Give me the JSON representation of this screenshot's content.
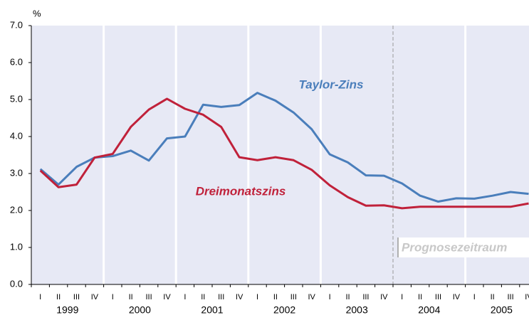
{
  "chart_data": {
    "type": "line",
    "y_unit": "%",
    "categories": [
      "I",
      "II",
      "III",
      "IV",
      "I",
      "II",
      "III",
      "IV",
      "I",
      "II",
      "III",
      "IV",
      "I",
      "II",
      "III",
      "IV",
      "I",
      "II",
      "III",
      "IV",
      "I",
      "II",
      "III",
      "IV",
      "I",
      "II",
      "III",
      "IV"
    ],
    "years": [
      "1999",
      "2000",
      "2001",
      "2002",
      "2003",
      "2004",
      "2005"
    ],
    "forecast_from": "2004",
    "forecast_label": "Prognosezeitraum",
    "series": [
      {
        "name": "Taylor-Zins",
        "color": "#4a7ebb",
        "values": [
          3.12,
          2.7,
          3.18,
          3.43,
          3.47,
          3.62,
          3.35,
          3.95,
          4.0,
          4.86,
          4.8,
          4.85,
          5.18,
          4.97,
          4.65,
          4.2,
          3.52,
          3.3,
          2.95,
          2.94,
          2.73,
          2.4,
          2.24,
          2.33,
          2.32,
          2.4,
          2.5,
          2.45
        ]
      },
      {
        "name": "Dreimonatszins",
        "color": "#c0213a",
        "values": [
          3.08,
          2.63,
          2.7,
          3.43,
          3.53,
          4.26,
          4.73,
          5.02,
          4.75,
          4.59,
          4.26,
          3.44,
          3.36,
          3.44,
          3.36,
          3.1,
          2.68,
          2.36,
          2.13,
          2.14,
          2.06,
          2.1,
          2.1,
          2.1,
          2.1,
          2.1,
          2.1,
          2.19
        ]
      }
    ],
    "ylim": [
      0,
      7
    ],
    "yticks": [
      {
        "value": 0,
        "label": "0.0"
      },
      {
        "value": 1,
        "label": "1.0"
      },
      {
        "value": 2,
        "label": "2.0"
      },
      {
        "value": 3,
        "label": "3.0"
      },
      {
        "value": 4,
        "label": "4.0"
      },
      {
        "value": 5,
        "label": "5.0"
      },
      {
        "value": 6,
        "label": "6.0"
      },
      {
        "value": 7,
        "label": "7.0"
      }
    ]
  }
}
